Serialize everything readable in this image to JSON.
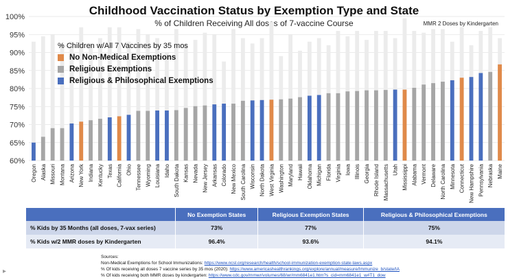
{
  "title": "Childhood Vaccination Status by Exemption Type and State",
  "subtitle": "% of Children Receiving All doses of 7-vaccine Course",
  "mmr_label": "MMR 2 Doses by Kindergarten",
  "legend": {
    "title": "% Children w/All 7 Vaccines by 35 mos",
    "items": [
      {
        "label": "No Non-Medical Exemptions",
        "color": "#e08a4a"
      },
      {
        "label": "Religious Exemptions",
        "color": "#a6a6a6"
      },
      {
        "label": "Religious & Philosophical Exemptions",
        "color": "#4a6fbe"
      }
    ]
  },
  "chart_data": {
    "type": "bar",
    "ylim": [
      60,
      100
    ],
    "yticks": [
      "60%",
      "65%",
      "70%",
      "75%",
      "80%",
      "85%",
      "90%",
      "95%",
      "100%"
    ],
    "categories": [
      "Oregon",
      "Alaska",
      "Missouri",
      "Montana",
      "Arizona",
      "New York",
      "Indiana",
      "Kentucky",
      "Texas",
      "California",
      "Ohio",
      "Tennessee",
      "Wyoming",
      "Louisiana",
      "Idaho",
      "South Dakota",
      "Kansas",
      "Nevada",
      "New Jersey",
      "Arkansas",
      "Colorado",
      "New Mexico",
      "South Carolina",
      "Wisconsin",
      "North Dakota",
      "West Virginia",
      "Washington",
      "Maryland",
      "Hawaii",
      "Oklahoma",
      "Michigan",
      "Florida",
      "Virginia",
      "Iowa",
      "Illinois",
      "Georgia",
      "Rhode Island",
      "Massachusetts",
      "Utah",
      "Mississippi",
      "Alabama",
      "Vermont",
      "Delaware",
      "North Carolina",
      "Minnesota",
      "Connecticut",
      "New Hampshire",
      "Pennsylvania",
      "Nebraska",
      "Maine"
    ],
    "series": [
      {
        "name": "% Children w/All 7 Vaccines by 35 mos",
        "values": [
          65.0,
          66.6,
          69.0,
          69.0,
          70.3,
          70.8,
          71.2,
          71.6,
          72.0,
          72.3,
          72.7,
          73.8,
          73.8,
          73.9,
          73.9,
          74.0,
          74.6,
          75.1,
          75.3,
          75.6,
          75.8,
          75.8,
          76.6,
          76.7,
          76.8,
          76.9,
          77.0,
          77.2,
          77.6,
          78.0,
          78.2,
          78.7,
          78.7,
          79.2,
          79.3,
          79.5,
          79.5,
          79.6,
          79.7,
          79.7,
          80.2,
          81.1,
          81.5,
          81.9,
          82.3,
          83.0,
          83.2,
          84.3,
          84.6,
          86.7
        ]
      },
      {
        "name": "MMR 2 Doses by Kindergarten",
        "values": [
          93.0,
          94.5,
          95.0,
          92.5,
          93.0,
          97.0,
          92.5,
          94.0,
          97.0,
          97.0,
          93.0,
          96.5,
          95.0,
          94.0,
          90.0,
          96.5,
          92.0,
          93.5,
          95.5,
          95.0,
          87.5,
          96.5,
          94.0,
          92.5,
          94.0,
          98.5,
          89.0,
          95.0,
          90.5,
          93.0,
          94.0,
          92.0,
          96.0,
          94.5,
          96.0,
          93.5,
          96.0,
          96.0,
          94.0,
          99.5,
          96.0,
          95.5,
          96.5,
          96.5,
          93.0,
          97.0,
          92.0,
          96.0,
          97.0,
          94.0
        ]
      }
    ],
    "groups": [
      "blue",
      "gray",
      "gray",
      "gray",
      "blue",
      "orange",
      "gray",
      "gray",
      "blue",
      "orange",
      "blue",
      "gray",
      "gray",
      "blue",
      "blue",
      "gray",
      "gray",
      "gray",
      "gray",
      "blue",
      "blue",
      "gray",
      "gray",
      "blue",
      "blue",
      "orange",
      "gray",
      "gray",
      "gray",
      "blue",
      "blue",
      "gray",
      "gray",
      "gray",
      "gray",
      "gray",
      "gray",
      "gray",
      "blue",
      "orange",
      "gray",
      "gray",
      "gray",
      "gray",
      "blue",
      "orange",
      "blue",
      "blue",
      "gray",
      "orange"
    ],
    "group_colors": {
      "orange": "#e08a4a",
      "gray": "#a6a6a6",
      "blue": "#4a6fbe",
      "background": "#ececec"
    }
  },
  "table": {
    "headers": [
      "",
      "No Exemption States",
      "Religious Exemption States",
      "Religious & Philosophical Exemptions"
    ],
    "rows": [
      {
        "label": "% Kids by 35 Months (all doses, 7-vax series)",
        "values": [
          "73%",
          "77%",
          "75%"
        ]
      },
      {
        "label": "% Kids w/2 MMR doses by Kindergarten",
        "values": [
          "96.4%",
          "93.6%",
          "94.1%"
        ]
      }
    ]
  },
  "sources": {
    "heading": "Sources:",
    "lines": [
      {
        "text": "Non-Medical Exemptions for School Immunizations: ",
        "link": "https://www.ncsl.org/research/health/school-immunization-exemption-state-laws.aspx"
      },
      {
        "text": "% Of kids receiving all  doses 7 vaccine series by 35 mos (2020): ",
        "link": "https://www.americashealthrankings.org/explore/annual/measure/Immunize_b/state/IA"
      },
      {
        "text": "% Of kids receiving both MMR doses by kindergarten: ",
        "link": "https://www.cdc.gov/mmwr/volumes/68/wr/mm6841e1.htm?s_cid=mm6841e1_w#T1_dow"
      }
    ]
  }
}
